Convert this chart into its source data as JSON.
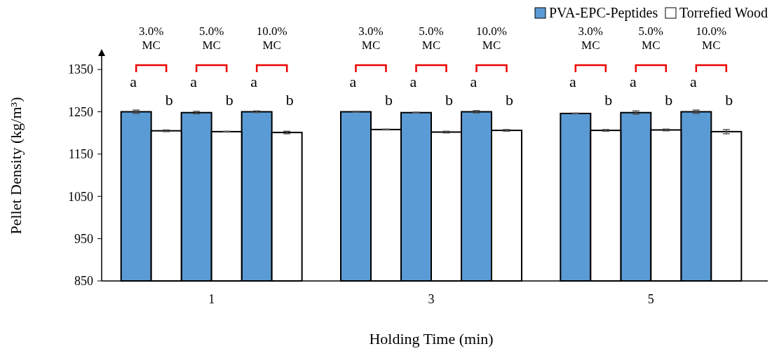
{
  "chart_data": {
    "type": "bar",
    "xlabel": "Holding Time (min)",
    "ylabel": "Pellet Density (kg/m³)",
    "categories": [
      null,
      "1",
      null,
      null,
      "3",
      null,
      null,
      "5",
      null
    ],
    "series": [
      {
        "name": "PVA-EPC-Peptides",
        "color": "#5b9bd5",
        "values": [
          1250,
          1248,
          1250,
          1250,
          1248,
          1250,
          1246,
          1248,
          1250
        ],
        "errors": [
          4,
          3,
          2,
          1,
          1,
          3,
          1,
          4,
          4
        ]
      },
      {
        "name": "Torrefied Wood",
        "color": "#ffffff",
        "values": [
          1205,
          1203,
          1201,
          1208,
          1202,
          1206,
          1206,
          1207,
          1203
        ],
        "errors": [
          2,
          1,
          3,
          1,
          2,
          2,
          2,
          2,
          5
        ]
      }
    ],
    "ylim": [
      850,
      1395
    ],
    "yticks": [
      850,
      950,
      1050,
      1150,
      1250,
      1350
    ],
    "grid": false,
    "legend": "top right",
    "annotations": [
      "3.0%\nMC",
      "a",
      "b",
      "5.0%\nMC",
      "a",
      "b",
      "10.0%\nMC",
      "a",
      "b",
      "3.0%\nMC",
      "a",
      "b",
      "5.0%\nMC",
      "a",
      "b",
      "10.0%\nMC",
      "a",
      "b",
      "3.0%\nMC",
      "a",
      "b",
      "5.0%\nMC",
      "a",
      "b",
      "10.0%\nMC",
      "a",
      "b"
    ]
  }
}
